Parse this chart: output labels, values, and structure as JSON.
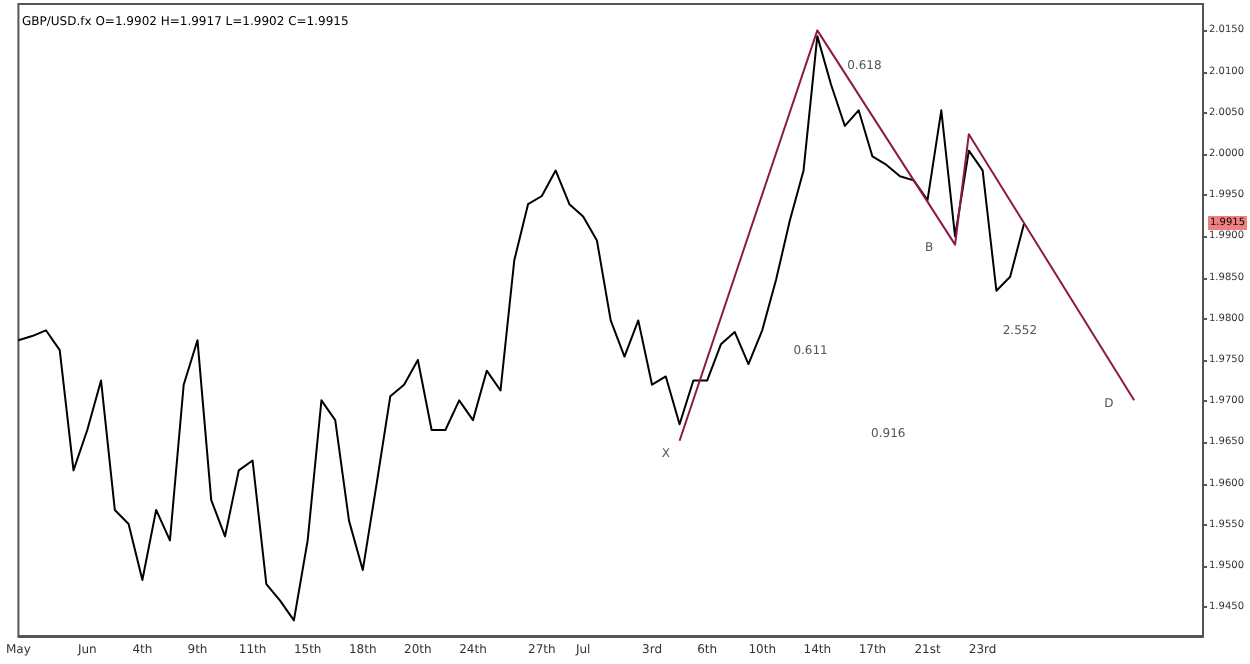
{
  "chart_data": {
    "type": "line",
    "title": "GBP/USD.fx O=1.9902 H=1.9917 L=1.9902 C=1.9915",
    "categories": [
      "May",
      null,
      null,
      null,
      null,
      "Jun",
      null,
      null,
      null,
      "4th",
      null,
      null,
      null,
      "9th",
      null,
      null,
      null,
      "11th",
      null,
      null,
      null,
      "15th",
      null,
      null,
      null,
      "18th",
      null,
      null,
      null,
      "20th",
      null,
      null,
      null,
      "24th",
      null,
      null,
      null,
      null,
      "27th",
      null,
      null,
      "Jul",
      null,
      null,
      null,
      null,
      "3rd",
      null,
      null,
      null,
      "6th",
      null,
      null,
      null,
      "10th",
      null,
      null,
      null,
      "14th",
      null,
      null,
      null,
      "17th",
      null,
      null,
      null,
      "21st",
      null,
      null,
      null,
      "23rd",
      null,
      null,
      null,
      null,
      null,
      null,
      null,
      null,
      null,
      null,
      null,
      null,
      null,
      null,
      null,
      null
    ],
    "series": [
      {
        "color": "#000000",
        "values": [
          1.9774,
          1.9779,
          1.9786,
          1.9762,
          1.9616,
          1.9665,
          1.9725,
          1.9568,
          1.9551,
          1.9483,
          1.9568,
          1.9531,
          1.972,
          1.9774,
          1.958,
          1.9536,
          1.9616,
          1.9628,
          1.9478,
          1.9458,
          1.9434,
          1.9531,
          1.9701,
          1.9677,
          1.9555,
          1.9495,
          1.9599,
          1.9706,
          1.972,
          1.975,
          1.9665,
          1.9665,
          1.9701,
          1.9677,
          1.9737,
          1.9713,
          1.9871,
          1.9939,
          1.9949,
          1.998,
          1.9939,
          1.9924,
          1.9895,
          1.9798,
          1.9754,
          1.9798,
          1.972,
          1.973,
          1.9672,
          1.9725,
          1.9725,
          1.9769,
          1.9784,
          1.9745,
          1.9786,
          1.9847,
          1.9919,
          1.998,
          2.0143,
          2.0084,
          2.0034,
          2.0053,
          1.9997,
          1.9987,
          1.9973,
          1.9968,
          1.9944,
          2.0053,
          1.99,
          2.0004,
          1.998,
          1.9834,
          1.9851,
          1.9915,
          null,
          null,
          null,
          null,
          null,
          null,
          null,
          null,
          null,
          null,
          null,
          null,
          null
        ]
      },
      {
        "color": "#8b1a4a",
        "values": [
          null,
          null,
          null,
          null,
          null,
          null,
          null,
          null,
          null,
          null,
          null,
          null,
          null,
          null,
          null,
          null,
          null,
          null,
          null,
          null,
          null,
          null,
          null,
          null,
          null,
          null,
          null,
          null,
          null,
          null,
          null,
          null,
          null,
          null,
          null,
          null,
          null,
          null,
          null,
          null,
          null,
          null,
          null,
          null,
          null,
          null,
          null,
          null,
          1.9652,
          null,
          null,
          null,
          null,
          null,
          null,
          null,
          null,
          null,
          2.015,
          null,
          null,
          null,
          null,
          null,
          null,
          null,
          null,
          null,
          1.989,
          2.0024,
          null,
          null,
          null,
          null,
          null,
          null,
          null,
          null,
          null,
          null,
          null,
          1.9701,
          null,
          null,
          null,
          null,
          null
        ]
      }
    ],
    "ylim": [
      1.9415,
      2.0182
    ],
    "yticks": [
      {
        "value": 1.945,
        "label": "1.9450"
      },
      {
        "value": 1.95,
        "label": "1.9500"
      },
      {
        "value": 1.955,
        "label": "1.9550"
      },
      {
        "value": 1.96,
        "label": "1.9600"
      },
      {
        "value": 1.965,
        "label": "1.9650"
      },
      {
        "value": 1.97,
        "label": "1.9700"
      },
      {
        "value": 1.975,
        "label": "1.9750"
      },
      {
        "value": 1.98,
        "label": "1.9800"
      },
      {
        "value": 1.985,
        "label": "1.9850"
      },
      {
        "value": 1.99,
        "label": "1.9900"
      },
      {
        "value": 1.995,
        "label": "1.9950"
      },
      {
        "value": 2.0,
        "label": "2.0000"
      },
      {
        "value": 2.005,
        "label": "2.0050"
      },
      {
        "value": 2.01,
        "label": "2.0100"
      },
      {
        "value": 2.015,
        "label": "2.0150"
      }
    ],
    "annotations": [
      "0.618",
      "0.611",
      "2.552",
      "0.916",
      "X",
      "B",
      "D",
      {
        "text": "1.9915",
        "y": 1.9915
      }
    ],
    "grid": false,
    "marker": "none",
    "line_style": "solid"
  }
}
